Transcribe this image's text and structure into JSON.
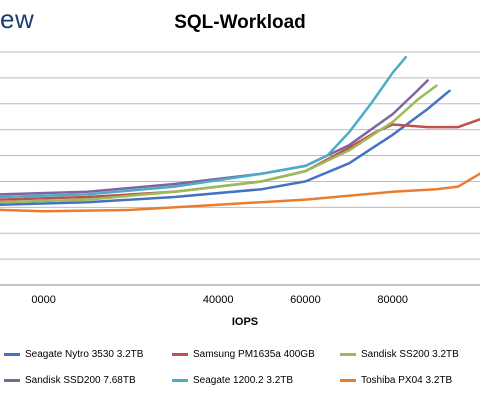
{
  "logo_text": "ew",
  "chart_data": {
    "type": "line",
    "title": "SQL-Workload",
    "xlabel": "IOPS",
    "ylabel": "",
    "xlim": [
      -10000,
      100000
    ],
    "ylim": [
      0,
      9
    ],
    "grid": true,
    "x_ticks": [
      0,
      40000,
      60000,
      80000
    ],
    "x_tick_labels": [
      "0000",
      "40000",
      "60000",
      "80000"
    ],
    "legend_position": "bottom",
    "series": [
      {
        "name": "Seagate Nytro 3530 3.2TB",
        "color": "#4472c4",
        "points": [
          [
            -10000,
            3.1
          ],
          [
            10000,
            3.2
          ],
          [
            30000,
            3.4
          ],
          [
            50000,
            3.7
          ],
          [
            60000,
            4.0
          ],
          [
            70000,
            4.7
          ],
          [
            80000,
            5.8
          ],
          [
            88000,
            6.8
          ],
          [
            93000,
            7.5
          ]
        ]
      },
      {
        "name": "Samsung PM1635a 400GB",
        "color": "#c0504d",
        "points": [
          [
            -10000,
            3.3
          ],
          [
            10000,
            3.4
          ],
          [
            30000,
            3.6
          ],
          [
            50000,
            4.0
          ],
          [
            60000,
            4.4
          ],
          [
            70000,
            5.3
          ],
          [
            76000,
            5.9
          ],
          [
            80000,
            6.2
          ],
          [
            88000,
            6.1
          ],
          [
            95000,
            6.1
          ],
          [
            100000,
            6.4
          ]
        ]
      },
      {
        "name": "Sandisk SS200 3.2TB",
        "color": "#9bbb59",
        "points": [
          [
            -10000,
            3.2
          ],
          [
            10000,
            3.3
          ],
          [
            30000,
            3.6
          ],
          [
            50000,
            4.0
          ],
          [
            60000,
            4.4
          ],
          [
            70000,
            5.2
          ],
          [
            80000,
            6.3
          ],
          [
            86000,
            7.2
          ],
          [
            90000,
            7.7
          ]
        ]
      },
      {
        "name": "Sandisk SSD200 7.68TB",
        "color": "#8064a2",
        "points": [
          [
            -10000,
            3.5
          ],
          [
            10000,
            3.6
          ],
          [
            30000,
            3.9
          ],
          [
            50000,
            4.3
          ],
          [
            60000,
            4.6
          ],
          [
            70000,
            5.4
          ],
          [
            80000,
            6.6
          ],
          [
            85000,
            7.4
          ],
          [
            88000,
            7.9
          ]
        ]
      },
      {
        "name": "Seagate 1200.2 3.2TB",
        "color": "#4bacc6",
        "points": [
          [
            -10000,
            3.4
          ],
          [
            10000,
            3.5
          ],
          [
            30000,
            3.8
          ],
          [
            50000,
            4.3
          ],
          [
            60000,
            4.6
          ],
          [
            65000,
            5.0
          ],
          [
            70000,
            5.9
          ],
          [
            75000,
            7.0
          ],
          [
            80000,
            8.2
          ],
          [
            83000,
            8.8
          ]
        ]
      },
      {
        "name": "Toshiba PX04 3.2TB",
        "color": "#e87d2f",
        "points": [
          [
            -10000,
            2.9
          ],
          [
            0,
            2.85
          ],
          [
            20000,
            2.9
          ],
          [
            40000,
            3.1
          ],
          [
            60000,
            3.3
          ],
          [
            80000,
            3.6
          ],
          [
            90000,
            3.7
          ],
          [
            95000,
            3.8
          ],
          [
            100000,
            4.3
          ]
        ]
      }
    ]
  }
}
